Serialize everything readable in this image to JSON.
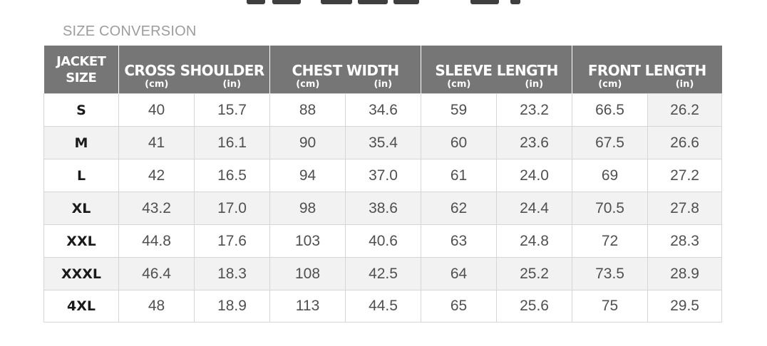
{
  "title": "SIZE CONVERSION",
  "header": {
    "size_line1": "JACKET",
    "size_line2": "SIZE",
    "groups": [
      "CROSS SHOULDER",
      "CHEST WIDTH",
      "SLEEVE LENGTH",
      "FRONT LENGTH"
    ],
    "unit_cm": "(cm)",
    "unit_in": "(in)"
  },
  "rows": [
    {
      "size": "S",
      "cells": [
        "40",
        "15.7",
        "88",
        "34.6",
        "59",
        "23.2",
        "66.5",
        "26.2"
      ]
    },
    {
      "size": "M",
      "cells": [
        "41",
        "16.1",
        "90",
        "35.4",
        "60",
        "23.6",
        "67.5",
        "26.6"
      ]
    },
    {
      "size": "L",
      "cells": [
        "42",
        "16.5",
        "94",
        "37.0",
        "61",
        "24.0",
        "69",
        "27.2"
      ]
    },
    {
      "size": "XL",
      "cells": [
        "43.2",
        "17.0",
        "98",
        "38.6",
        "62",
        "24.4",
        "70.5",
        "27.8"
      ]
    },
    {
      "size": "XXL",
      "cells": [
        "44.8",
        "17.6",
        "103",
        "40.6",
        "63",
        "24.8",
        "72",
        "28.3"
      ]
    },
    {
      "size": "XXXL",
      "cells": [
        "46.4",
        "18.3",
        "108",
        "42.5",
        "64",
        "25.2",
        "73.5",
        "28.9"
      ]
    },
    {
      "size": "4XL",
      "cells": [
        "48",
        "18.9",
        "113",
        "44.5",
        "65",
        "25.6",
        "75",
        "29.5"
      ]
    }
  ]
}
